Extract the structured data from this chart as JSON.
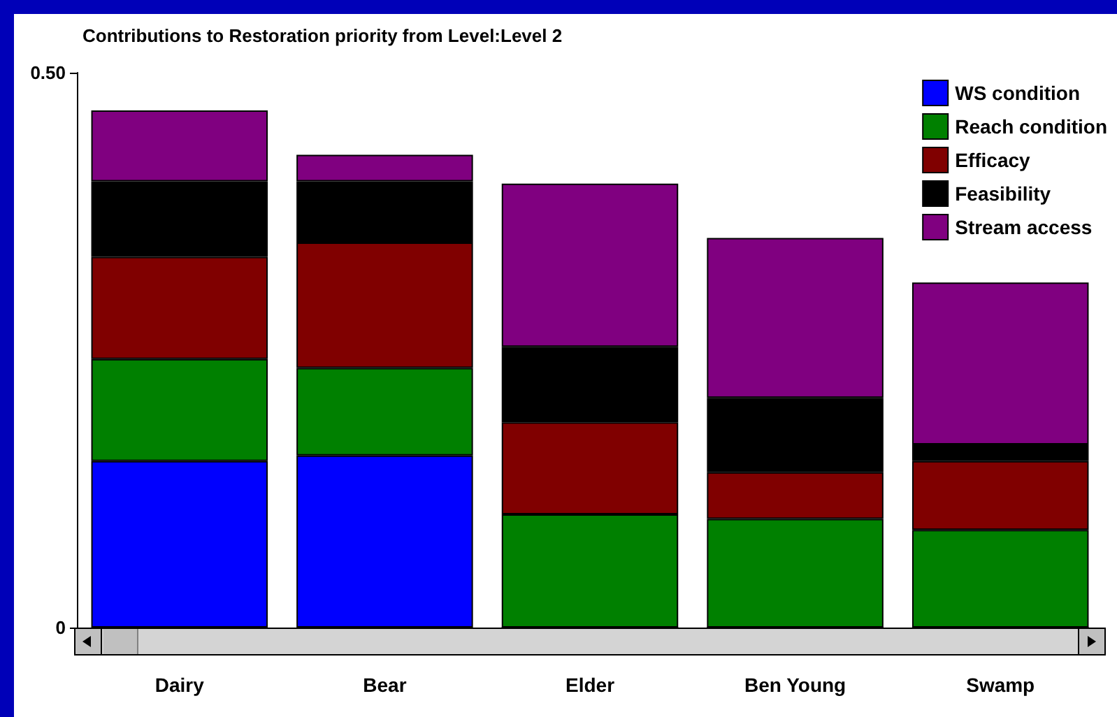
{
  "chart_data": {
    "type": "bar",
    "title": "Contributions to Restoration priority from Level:Level 2",
    "categories": [
      "Dairy",
      "Bear",
      "Elder",
      "Ben Young",
      "Swamp"
    ],
    "stacked": true,
    "ylim": [
      0,
      0.5
    ],
    "yticks": [
      0,
      {
        "value": 0.5,
        "label": "0.50"
      }
    ],
    "legend": "top right",
    "grid": false,
    "series": [
      {
        "name": "WS condition",
        "color": "#0000ff",
        "values": [
          0.15,
          0.155,
          0,
          0,
          0
        ]
      },
      {
        "name": "Reach condition",
        "color": "#008000",
        "values": [
          0.092,
          0.079,
          0.102,
          0.098,
          0.088
        ]
      },
      {
        "name": "Efficacy",
        "color": "#800000",
        "values": [
          0.092,
          0.113,
          0.083,
          0.042,
          0.062
        ]
      },
      {
        "name": "Feasibility",
        "color": "#000000",
        "values": [
          0.068,
          0.055,
          0.068,
          0.067,
          0.015
        ]
      },
      {
        "name": "Stream access",
        "color": "#800080",
        "values": [
          0.064,
          0.024,
          0.147,
          0.144,
          0.146
        ]
      }
    ]
  }
}
